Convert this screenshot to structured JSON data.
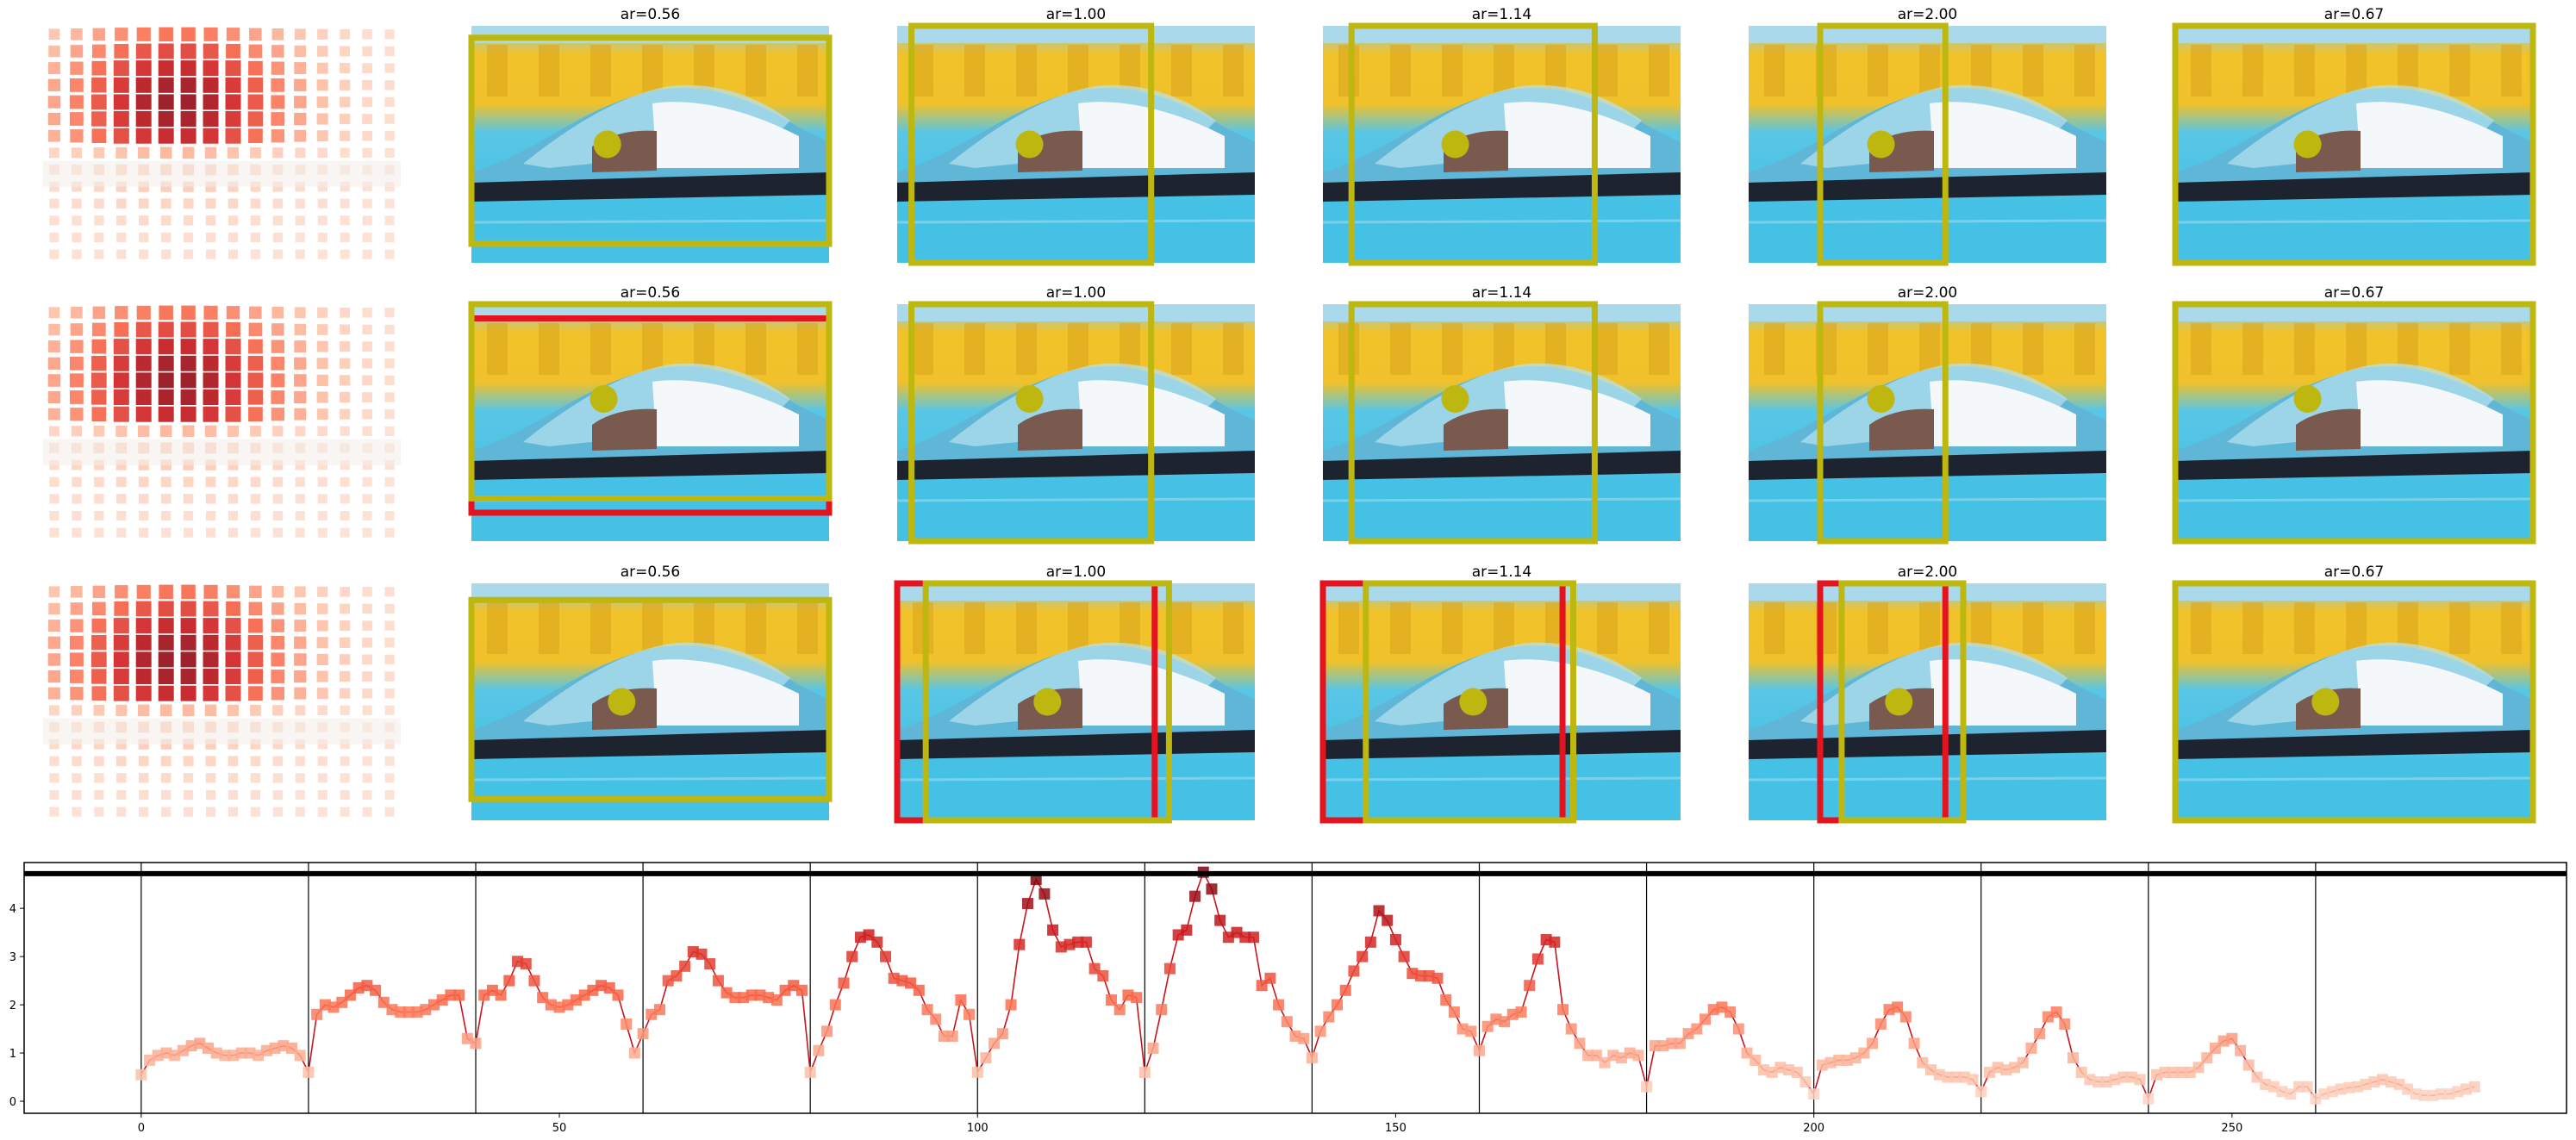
{
  "panel_rows": [
    {
      "panels": [
        {
          "title": "ar=0.56",
          "gt_box": [
            0.0,
            0.05,
            1.0,
            0.92
          ],
          "pred_box": null,
          "point": [
            0.38,
            0.5
          ]
        },
        {
          "title": "ar=1.00",
          "gt_box": [
            0.04,
            0.0,
            0.71,
            1.0
          ],
          "pred_box": null,
          "point": [
            0.37,
            0.5
          ]
        },
        {
          "title": "ar=1.14",
          "gt_box": [
            0.08,
            0.0,
            0.76,
            1.0
          ],
          "pred_box": null,
          "point": [
            0.37,
            0.5
          ]
        },
        {
          "title": "ar=2.00",
          "gt_box": [
            0.2,
            0.0,
            0.55,
            1.0
          ],
          "pred_box": null,
          "point": [
            0.37,
            0.5
          ]
        },
        {
          "title": "ar=0.67",
          "gt_box": [
            0.0,
            0.0,
            1.0,
            1.0
          ],
          "pred_box": null,
          "point": [
            0.37,
            0.5
          ]
        }
      ]
    },
    {
      "panels": [
        {
          "title": "ar=0.56",
          "gt_box": [
            0.0,
            0.0,
            1.0,
            0.82
          ],
          "pred_box": [
            0.0,
            0.06,
            1.0,
            0.88
          ],
          "point": [
            0.37,
            0.4
          ]
        },
        {
          "title": "ar=1.00",
          "gt_box": [
            0.04,
            0.0,
            0.71,
            1.0
          ],
          "pred_box": null,
          "point": [
            0.37,
            0.4
          ]
        },
        {
          "title": "ar=1.14",
          "gt_box": [
            0.08,
            0.0,
            0.76,
            1.0
          ],
          "pred_box": null,
          "point": [
            0.37,
            0.4
          ]
        },
        {
          "title": "ar=2.00",
          "gt_box": [
            0.2,
            0.0,
            0.55,
            1.0
          ],
          "pred_box": null,
          "point": [
            0.37,
            0.4
          ]
        },
        {
          "title": "ar=0.67",
          "gt_box": [
            0.0,
            0.0,
            1.0,
            1.0
          ],
          "pred_box": null,
          "point": [
            0.37,
            0.4
          ]
        }
      ]
    },
    {
      "panels": [
        {
          "title": "ar=0.56",
          "gt_box": [
            0.0,
            0.07,
            1.0,
            0.91
          ],
          "pred_box": null,
          "point": [
            0.42,
            0.5
          ]
        },
        {
          "title": "ar=1.00",
          "gt_box": [
            0.08,
            0.0,
            0.76,
            1.0
          ],
          "pred_box": [
            0.0,
            0.0,
            0.72,
            1.0
          ],
          "point": [
            0.42,
            0.5
          ]
        },
        {
          "title": "ar=1.14",
          "gt_box": [
            0.12,
            0.0,
            0.7,
            1.0
          ],
          "pred_box": [
            0.0,
            0.0,
            0.67,
            1.0
          ],
          "point": [
            0.42,
            0.5
          ]
        },
        {
          "title": "ar=2.00",
          "gt_box": [
            0.26,
            0.0,
            0.6,
            1.0
          ],
          "pred_box": [
            0.2,
            0.0,
            0.55,
            1.0
          ],
          "point": [
            0.42,
            0.5
          ]
        },
        {
          "title": "ar=0.67",
          "gt_box": [
            0.0,
            0.0,
            1.0,
            1.0
          ],
          "pred_box": null,
          "point": [
            0.42,
            0.5
          ]
        }
      ]
    }
  ],
  "chart_data": {
    "type": "line",
    "title": "",
    "xlabel": "",
    "ylabel": "",
    "xlim": [
      -14,
      290
    ],
    "ylim": [
      -0.25,
      4.95
    ],
    "xticks": [
      0,
      50,
      100,
      150,
      200,
      250
    ],
    "yticks": [
      0,
      1,
      2,
      3,
      4
    ],
    "segment_boundaries": [
      0,
      20,
      40,
      60,
      80,
      100,
      120,
      140,
      160,
      180,
      200,
      220,
      240,
      260
    ],
    "top_band": [
      4.72,
      4.95
    ],
    "line_color": "#c8141e",
    "marker": "square",
    "grid": false,
    "x": [
      0,
      1,
      2,
      3,
      4,
      5,
      6,
      7,
      8,
      9,
      10,
      11,
      12,
      13,
      14,
      15,
      16,
      17,
      18,
      19,
      20,
      21,
      22,
      23,
      24,
      25,
      26,
      27,
      28,
      29,
      30,
      31,
      32,
      33,
      34,
      35,
      36,
      37,
      38,
      39,
      40,
      41,
      42,
      43,
      44,
      45,
      46,
      47,
      48,
      49,
      50,
      51,
      52,
      53,
      54,
      55,
      56,
      57,
      58,
      59,
      60,
      61,
      62,
      63,
      64,
      65,
      66,
      67,
      68,
      69,
      70,
      71,
      72,
      73,
      74,
      75,
      76,
      77,
      78,
      79,
      80,
      81,
      82,
      83,
      84,
      85,
      86,
      87,
      88,
      89,
      90,
      91,
      92,
      93,
      94,
      95,
      96,
      97,
      98,
      99,
      100,
      101,
      102,
      103,
      104,
      105,
      106,
      107,
      108,
      109,
      110,
      111,
      112,
      113,
      114,
      115,
      116,
      117,
      118,
      119,
      120,
      121,
      122,
      123,
      124,
      125,
      126,
      127,
      128,
      129,
      130,
      131,
      132,
      133,
      134,
      135,
      136,
      137,
      138,
      139,
      140,
      141,
      142,
      143,
      144,
      145,
      146,
      147,
      148,
      149,
      150,
      151,
      152,
      153,
      154,
      155,
      156,
      157,
      158,
      159,
      160,
      161,
      162,
      163,
      164,
      165,
      166,
      167,
      168,
      169,
      170,
      171,
      172,
      173,
      174,
      175,
      176,
      177,
      178,
      179,
      180,
      181,
      182,
      183,
      184,
      185,
      186,
      187,
      188,
      189,
      190,
      191,
      192,
      193,
      194,
      195,
      196,
      197,
      198,
      199,
      200,
      201,
      202,
      203,
      204,
      205,
      206,
      207,
      208,
      209,
      210,
      211,
      212,
      213,
      214,
      215,
      216,
      217,
      218,
      219,
      220,
      221,
      222,
      223,
      224,
      225,
      226,
      227,
      228,
      229,
      230,
      231,
      232,
      233,
      234,
      235,
      236,
      237,
      238,
      239,
      240,
      241,
      242,
      243,
      244,
      245,
      246,
      247,
      248,
      249,
      250,
      251,
      252,
      253,
      254,
      255,
      256,
      257,
      258,
      259,
      260,
      261,
      262,
      263,
      264,
      265,
      266,
      267,
      268,
      269,
      270,
      271,
      272,
      273,
      274,
      275,
      276,
      277,
      278,
      279
    ],
    "y": [
      0.55,
      0.85,
      0.95,
      1.0,
      0.95,
      1.05,
      1.15,
      1.2,
      1.1,
      1.0,
      0.95,
      0.95,
      1.0,
      1.0,
      0.95,
      1.05,
      1.1,
      1.15,
      1.1,
      0.95,
      0.6,
      1.8,
      2.0,
      1.95,
      2.05,
      2.2,
      2.35,
      2.4,
      2.3,
      2.05,
      1.9,
      1.85,
      1.85,
      1.85,
      1.9,
      2.0,
      2.1,
      2.2,
      2.2,
      1.3,
      1.2,
      2.2,
      2.3,
      2.2,
      2.5,
      2.9,
      2.85,
      2.5,
      2.15,
      2.0,
      1.95,
      2.0,
      2.1,
      2.2,
      2.3,
      2.4,
      2.35,
      2.2,
      1.6,
      1.0,
      1.4,
      1.8,
      1.9,
      2.5,
      2.6,
      2.8,
      3.1,
      3.05,
      2.85,
      2.5,
      2.25,
      2.15,
      2.15,
      2.2,
      2.2,
      2.15,
      2.1,
      2.3,
      2.4,
      2.3,
      0.6,
      1.05,
      1.45,
      2.0,
      2.45,
      3.0,
      3.4,
      3.45,
      3.3,
      3.0,
      2.55,
      2.5,
      2.45,
      2.3,
      1.9,
      1.7,
      1.35,
      1.35,
      2.1,
      1.8,
      0.6,
      0.9,
      1.2,
      1.4,
      2.0,
      3.25,
      4.1,
      4.6,
      4.3,
      3.55,
      3.2,
      3.25,
      3.3,
      3.3,
      2.75,
      2.6,
      2.1,
      1.9,
      2.2,
      2.15,
      0.6,
      1.1,
      1.9,
      2.75,
      3.45,
      3.55,
      4.25,
      4.75,
      4.4,
      3.75,
      3.4,
      3.5,
      3.4,
      3.4,
      2.4,
      2.55,
      2.0,
      1.65,
      1.35,
      1.3,
      0.9,
      1.45,
      1.75,
      2.0,
      2.3,
      2.7,
      3.0,
      3.3,
      3.95,
      3.75,
      3.35,
      3.0,
      2.65,
      2.6,
      2.6,
      2.55,
      2.1,
      1.85,
      1.5,
      1.45,
      1.05,
      1.55,
      1.7,
      1.65,
      1.8,
      1.85,
      2.4,
      2.95,
      3.35,
      3.3,
      1.9,
      1.5,
      1.2,
      0.95,
      0.95,
      0.8,
      0.95,
      0.9,
      1.0,
      0.95,
      0.3,
      1.15,
      1.15,
      1.2,
      1.2,
      1.4,
      1.5,
      1.7,
      1.9,
      1.95,
      1.85,
      1.5,
      1.0,
      0.85,
      0.65,
      0.6,
      0.7,
      0.65,
      0.6,
      0.4,
      0.15,
      0.75,
      0.8,
      0.85,
      0.85,
      0.9,
      1.0,
      1.2,
      1.6,
      1.9,
      1.95,
      1.75,
      1.2,
      0.8,
      0.65,
      0.55,
      0.5,
      0.5,
      0.5,
      0.45,
      0.2,
      0.6,
      0.7,
      0.65,
      0.7,
      0.8,
      1.1,
      1.4,
      1.75,
      1.85,
      1.6,
      0.9,
      0.6,
      0.45,
      0.4,
      0.4,
      0.45,
      0.5,
      0.5,
      0.45,
      0.05,
      0.55,
      0.6,
      0.6,
      0.6,
      0.6,
      0.7,
      0.9,
      1.1,
      1.25,
      1.3,
      1.05,
      0.75,
      0.5,
      0.35,
      0.3,
      0.2,
      0.15,
      0.3,
      0.3,
      0.05,
      0.15,
      0.2,
      0.25,
      0.28,
      0.3,
      0.35,
      0.4,
      0.45,
      0.4,
      0.35,
      0.25,
      0.15,
      0.12,
      0.12,
      0.15,
      0.15,
      0.2,
      0.25,
      0.3
    ]
  }
}
